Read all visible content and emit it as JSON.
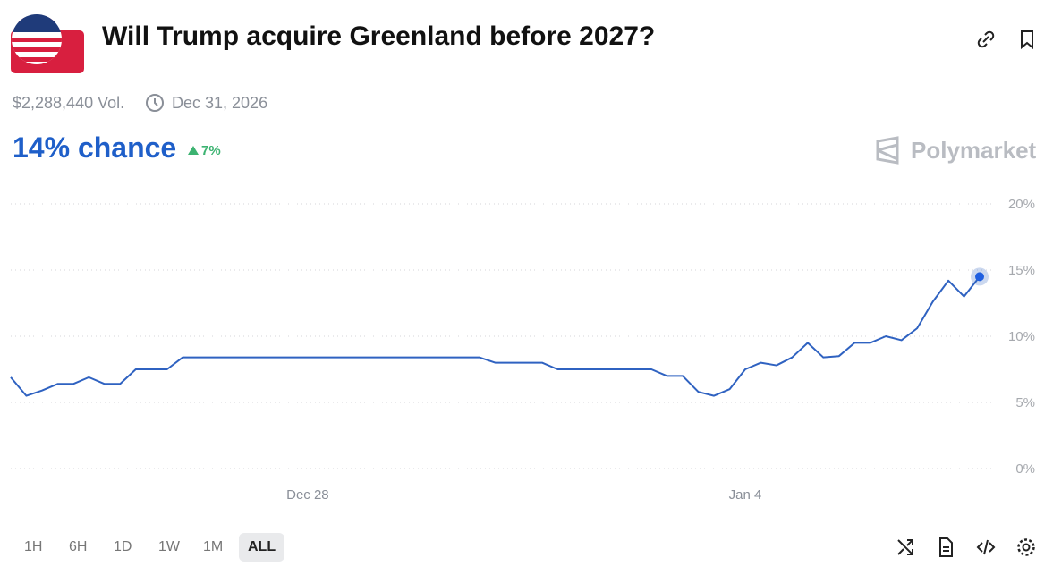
{
  "header": {
    "title": "Will Trump acquire Greenland before 2027?",
    "volume": "$2,288,440 Vol.",
    "end_date": "Dec 31, 2026",
    "chance": "14% chance",
    "change": "7%",
    "brand": "Polymarket"
  },
  "ranges": {
    "items": [
      "1H",
      "6H",
      "1D",
      "1W",
      "1M",
      "ALL"
    ],
    "active": "ALL"
  },
  "chart_data": {
    "type": "line",
    "color": "#2f62c1",
    "categories": [
      null,
      null,
      null,
      null,
      null,
      null,
      null,
      null,
      null,
      null,
      null,
      null,
      null,
      null,
      null,
      null,
      null,
      null,
      null,
      "Dec 28",
      null,
      null,
      null,
      null,
      null,
      null,
      null,
      null,
      null,
      null,
      null,
      null,
      null,
      null,
      null,
      null,
      null,
      null,
      null,
      null,
      null,
      null,
      null,
      null,
      null,
      null,
      null,
      "Jan 4",
      null,
      null,
      null,
      null,
      null,
      null,
      null,
      null,
      null,
      null,
      null,
      null,
      null,
      null,
      null
    ],
    "values": [
      6.9,
      5.5,
      5.9,
      6.4,
      6.4,
      6.9,
      6.4,
      6.4,
      7.5,
      7.5,
      7.5,
      8.4,
      8.4,
      8.4,
      8.4,
      8.4,
      8.4,
      8.4,
      8.4,
      8.4,
      8.4,
      8.4,
      8.4,
      8.4,
      8.4,
      8.4,
      8.4,
      8.4,
      8.4,
      8.4,
      8.4,
      8.0,
      8.0,
      8.0,
      8.0,
      7.5,
      7.5,
      7.5,
      7.5,
      7.5,
      7.5,
      7.5,
      7.0,
      7.0,
      5.8,
      5.5,
      6.0,
      7.5,
      8.0,
      7.8,
      8.4,
      9.5,
      8.4,
      8.5,
      9.5,
      9.5,
      10.0,
      9.7,
      10.6,
      12.6,
      14.2,
      13.0,
      14.5
    ],
    "ylim": [
      0,
      20
    ],
    "yticks": [
      {
        "value": 0,
        "label": "0%"
      },
      {
        "value": 5,
        "label": "5%"
      },
      {
        "value": 10,
        "label": "10%"
      },
      {
        "value": 15,
        "label": "15%"
      },
      {
        "value": 20,
        "label": "20%"
      }
    ],
    "grid": true
  }
}
